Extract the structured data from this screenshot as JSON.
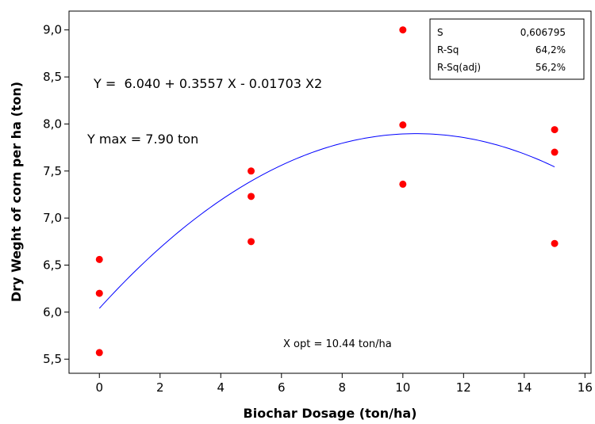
{
  "chart_data": {
    "type": "scatter",
    "xlabel": "Biochar Dosage (ton/ha)",
    "ylabel": "Dry Weght of corn per ha (ton)",
    "xlim": [
      -1,
      16.2
    ],
    "ylim": [
      5.35,
      9.2
    ],
    "x_ticks": [
      0,
      2,
      4,
      6,
      8,
      10,
      12,
      14,
      16
    ],
    "y_ticks": [
      5.5,
      6.0,
      6.5,
      7.0,
      7.5,
      8.0,
      8.5,
      9.0
    ],
    "y_tick_labels": [
      "5,5",
      "6,0",
      "6,5",
      "7,0",
      "7,5",
      "8,0",
      "8,5",
      "9,0"
    ],
    "grid": false,
    "points": [
      {
        "x": 0,
        "y": 6.56
      },
      {
        "x": 0,
        "y": 6.2
      },
      {
        "x": 0,
        "y": 5.57
      },
      {
        "x": 5,
        "y": 7.5
      },
      {
        "x": 5,
        "y": 7.23
      },
      {
        "x": 5,
        "y": 6.75
      },
      {
        "x": 10,
        "y": 9.0
      },
      {
        "x": 10,
        "y": 7.99
      },
      {
        "x": 10,
        "y": 7.36
      },
      {
        "x": 15,
        "y": 7.94
      },
      {
        "x": 15,
        "y": 7.7
      },
      {
        "x": 15,
        "y": 6.73
      }
    ],
    "fit": {
      "intercept": 6.04,
      "b1": 0.3557,
      "b2": -0.01703,
      "x_range": [
        0,
        15
      ]
    },
    "annotations": {
      "equation": "Y =  6.040 + 0.3557 X - 0.01703 X2",
      "ymax": "Y max = 7.90 ton",
      "xopt": "X opt = 10.44 ton/ha"
    },
    "stats": [
      {
        "label": "S",
        "value": "0,606795"
      },
      {
        "label": "R-Sq",
        "value": "64,2%"
      },
      {
        "label": "R-Sq(adj)",
        "value": "56,2%"
      }
    ],
    "colors": {
      "points": "#ff0000",
      "fit_line": "#0000ff",
      "axes": "#000000"
    }
  }
}
